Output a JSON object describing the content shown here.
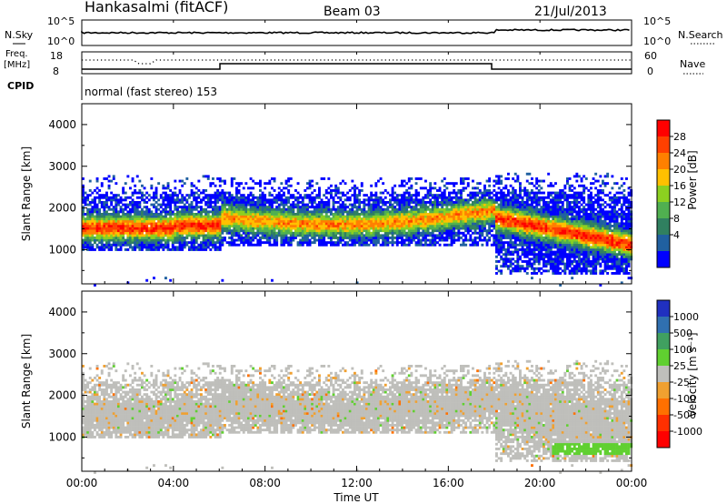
{
  "header": {
    "station": "Hankasalmi (fitACF)",
    "beam": "Beam 03",
    "date": "21/Jul/2013"
  },
  "top_panels": {
    "nsky_label": "N.Sky",
    "nsearch_label": "N.Search",
    "nsky_ticks": [
      "10^5",
      "10^0"
    ],
    "nsearch_ticks": [
      "10^5",
      "10^0"
    ],
    "freq_label_1": "Freq.",
    "freq_label_2": "[MHz]",
    "freq_ticks": [
      "18",
      "8"
    ],
    "nave_label": "Nave",
    "nave_ticks": [
      "60",
      "0"
    ],
    "cpid_label": "CPID",
    "cpid_text": "normal (fast stereo) 153"
  },
  "power_colorbar": {
    "label": "Power [dB]",
    "ticks": [
      "28",
      "24",
      "20",
      "16",
      "12",
      "8",
      "4"
    ],
    "colors": [
      "#ff0000",
      "#ff4000",
      "#ff8000",
      "#ffc000",
      "#8cd020",
      "#50b050",
      "#308060",
      "#2060a0",
      "#0000ff"
    ]
  },
  "velocity_colorbar": {
    "label": "Velocity [m s⁻¹]",
    "ticks": [
      "1000",
      "500",
      "100",
      "25",
      "-25",
      "-100",
      "-500",
      "-1000"
    ],
    "colors": [
      "#2030c0",
      "#3070b0",
      "#40a060",
      "#60d030",
      "#bfbfbb",
      "#f0a030",
      "#ff7000",
      "#ff3000",
      "#ff0000"
    ]
  },
  "chart_data": [
    {
      "type": "heatmap",
      "title": "Power",
      "ylabel": "Slant Range [km]",
      "xlabel": "Time UT",
      "xlim": [
        "00:00",
        "24:00"
      ],
      "ylim": [
        180,
        4500
      ],
      "yticks": [
        1000,
        2000,
        3000,
        4000
      ],
      "xticks": [
        "00:00",
        "04:00",
        "08:00",
        "12:00",
        "16:00",
        "20:00",
        "00:00"
      ],
      "zlim": [
        0,
        30
      ],
      "echo_bands": [
        {
          "t_start": 0,
          "t_end": 6,
          "range_low": 1250,
          "range_high": 2100,
          "peak_power_db": 28
        },
        {
          "t_start": 6,
          "t_end": 18,
          "range_low": 1350,
          "range_high": 2050,
          "peak_power_db": 22
        },
        {
          "t_start": 18,
          "t_end": 24,
          "range_low": 700,
          "range_high": 2200,
          "peak_power_db": 28
        }
      ]
    },
    {
      "type": "heatmap",
      "title": "Velocity",
      "ylabel": "Slant Range [km]",
      "xlabel": "Time UT",
      "xlim": [
        "00:00",
        "24:00"
      ],
      "ylim": [
        180,
        4500
      ],
      "yticks": [
        1000,
        2000,
        3000,
        4000
      ],
      "xticks": [
        "00:00",
        "04:00",
        "08:00",
        "12:00",
        "16:00",
        "20:00",
        "00:00"
      ],
      "zlim": [
        -1000,
        1000
      ],
      "dominant_velocity": "-25 to 25",
      "notable_regions": [
        {
          "t_start": 20.5,
          "t_end": 24,
          "range_low": 600,
          "range_high": 900,
          "velocity": 100
        }
      ]
    }
  ]
}
